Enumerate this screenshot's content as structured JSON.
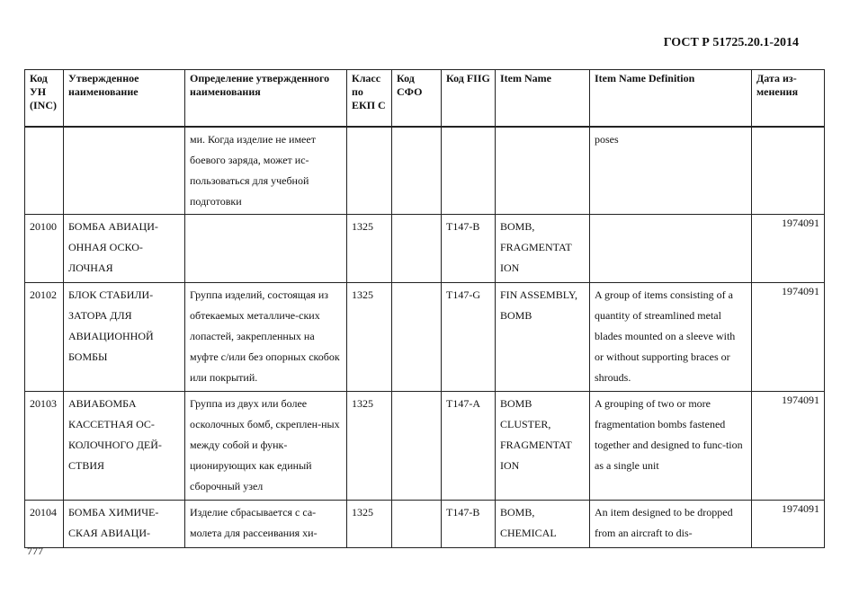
{
  "header": "ГОСТ Р 51725.20.1-2014",
  "page_number": "777",
  "columns": [
    "Код УН (INC)",
    "Утвержденное наименование",
    "Определение утвержденного наименования",
    "Класс по ЕКП С",
    "Код СФО",
    "Код FIIG",
    "Item Name",
    "Item Name Definition",
    "Дата из-менения"
  ],
  "rows": [
    [
      "",
      "",
      "ми. Когда изделие не имеет боевого заряда, может ис-пользоваться для учебной подготовки",
      "",
      "",
      "",
      "",
      "poses",
      ""
    ],
    [
      "20100",
      "БОМБА АВИАЦИ-ОННАЯ ОСКО-ЛОЧНАЯ",
      "",
      "1325",
      "",
      "T147-B",
      "BOMB, FRAGMENTAT ION",
      "",
      "1974091"
    ],
    [
      "20102",
      "БЛОК СТАБИЛИ-ЗАТОРА ДЛЯ АВИАЦИОННОЙ БОМБЫ",
      "Группа изделий, состоящая из обтекаемых металличе-ских лопастей, закрепленных на муфте с/или без опорных скобок или покрытий.",
      "1325",
      "",
      "T147-G",
      "FIN ASSEMBLY, BOMB",
      "A group of items consisting of a quantity of streamlined metal blades mounted on a sleeve with or without supporting braces or shrouds.",
      "1974091"
    ],
    [
      "20103",
      "АВИАБОМБА КАССЕТНАЯ ОС-КОЛОЧНОГО ДЕЙ-СТВИЯ",
      "Группа из двух или более осколочных бомб, скреплен-ных между собой и функ-ционирующих как единый сборочный узел",
      "1325",
      "",
      "T147-A",
      "BOMB CLUSTER, FRAGMENTAT ION",
      "A grouping of two or more fragmentation bombs fastened together and designed to func-tion as a single unit",
      "1974091"
    ],
    [
      "20104",
      "БОМБА ХИМИЧЕ-СКАЯ АВИАЦИ-",
      "Изделие сбрасывается с са-молета для рассеивания хи-",
      "1325",
      "",
      "T147-B",
      "BOMB, CHEMICAL",
      "An item designed to be dropped from an aircraft to dis-",
      "1974091"
    ]
  ]
}
